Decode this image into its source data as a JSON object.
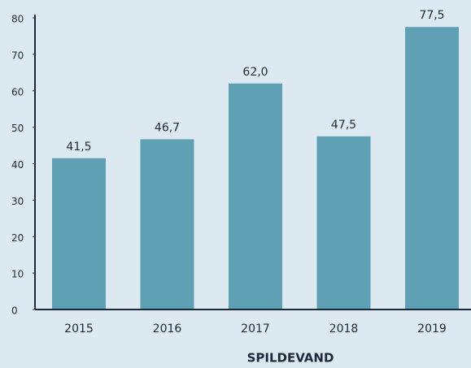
{
  "chart_data": {
    "type": "bar",
    "x_label": "SPILDEVAND",
    "categories": [
      "2015",
      "2016",
      "2017",
      "2018",
      "2019"
    ],
    "values": [
      41.5,
      46.7,
      62.0,
      47.5,
      77.5
    ],
    "value_labels": [
      "41,5",
      "46,7",
      "62,0",
      "47,5",
      "77,5"
    ],
    "color": "#5fa0b5",
    "ylim": [
      0,
      80
    ],
    "yticks": [
      0,
      10,
      20,
      30,
      40,
      50,
      60,
      70,
      80
    ],
    "grid": false
  }
}
